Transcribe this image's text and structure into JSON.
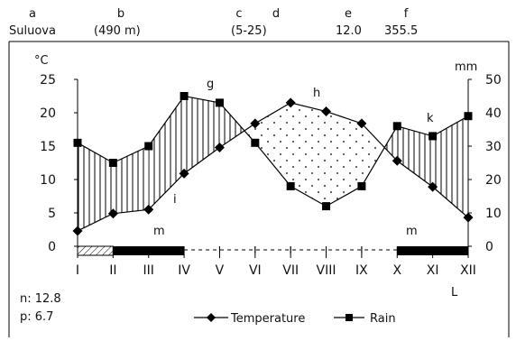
{
  "header": {
    "letters": [
      "a",
      "b",
      "c",
      "d",
      "e",
      "f"
    ],
    "station": "Suluova",
    "elevation": "(490 m)",
    "years": "(5-25)",
    "mean_temp": "12.0",
    "annual_rain": "355.5"
  },
  "annotations": {
    "g": "g",
    "h": "h",
    "i": "i",
    "k": "k",
    "m1": "m",
    "m2": "m",
    "L": "L",
    "n_text": "n: 12.8",
    "p_text": "p: 6.7"
  },
  "colors": {
    "line": "#000000",
    "hatch": "#000000",
    "dots": "#555555"
  },
  "chart_data": {
    "type": "line",
    "categories": [
      "I",
      "II",
      "III",
      "IV",
      "V",
      "VI",
      "VII",
      "VIII",
      "IX",
      "X",
      "XI",
      "XII"
    ],
    "series": [
      {
        "name": "Temperature",
        "marker": "diamond",
        "axis": "left",
        "values": [
          2.3,
          4.9,
          5.5,
          10.9,
          14.8,
          18.4,
          21.5,
          20.2,
          18.4,
          12.8,
          8.9,
          4.3
        ]
      },
      {
        "name": "Rain",
        "marker": "square",
        "axis": "right",
        "values": [
          31,
          25,
          30,
          45,
          43,
          31,
          18,
          12,
          18,
          36,
          33,
          39
        ]
      }
    ],
    "ylabel_left": "°C",
    "ylabel_right": "mm",
    "ylim_left": [
      0,
      25
    ],
    "ylim_right": [
      0,
      50
    ],
    "yticks_left": [
      "0",
      "5",
      "10",
      "15",
      "20",
      "25"
    ],
    "yticks_right": [
      "0",
      "10",
      "20",
      "30",
      "40",
      "50"
    ],
    "legend": {
      "position": "bottom",
      "entries": [
        "Temperature",
        "Rain"
      ]
    },
    "grid": false,
    "frost_bar": {
      "hatched_months": [
        "I"
      ],
      "solid_months": [
        "II",
        "III",
        "XI",
        "XII"
      ],
      "dashed_months": [
        "V",
        "VI",
        "VII",
        "VIII",
        "IX"
      ]
    }
  }
}
